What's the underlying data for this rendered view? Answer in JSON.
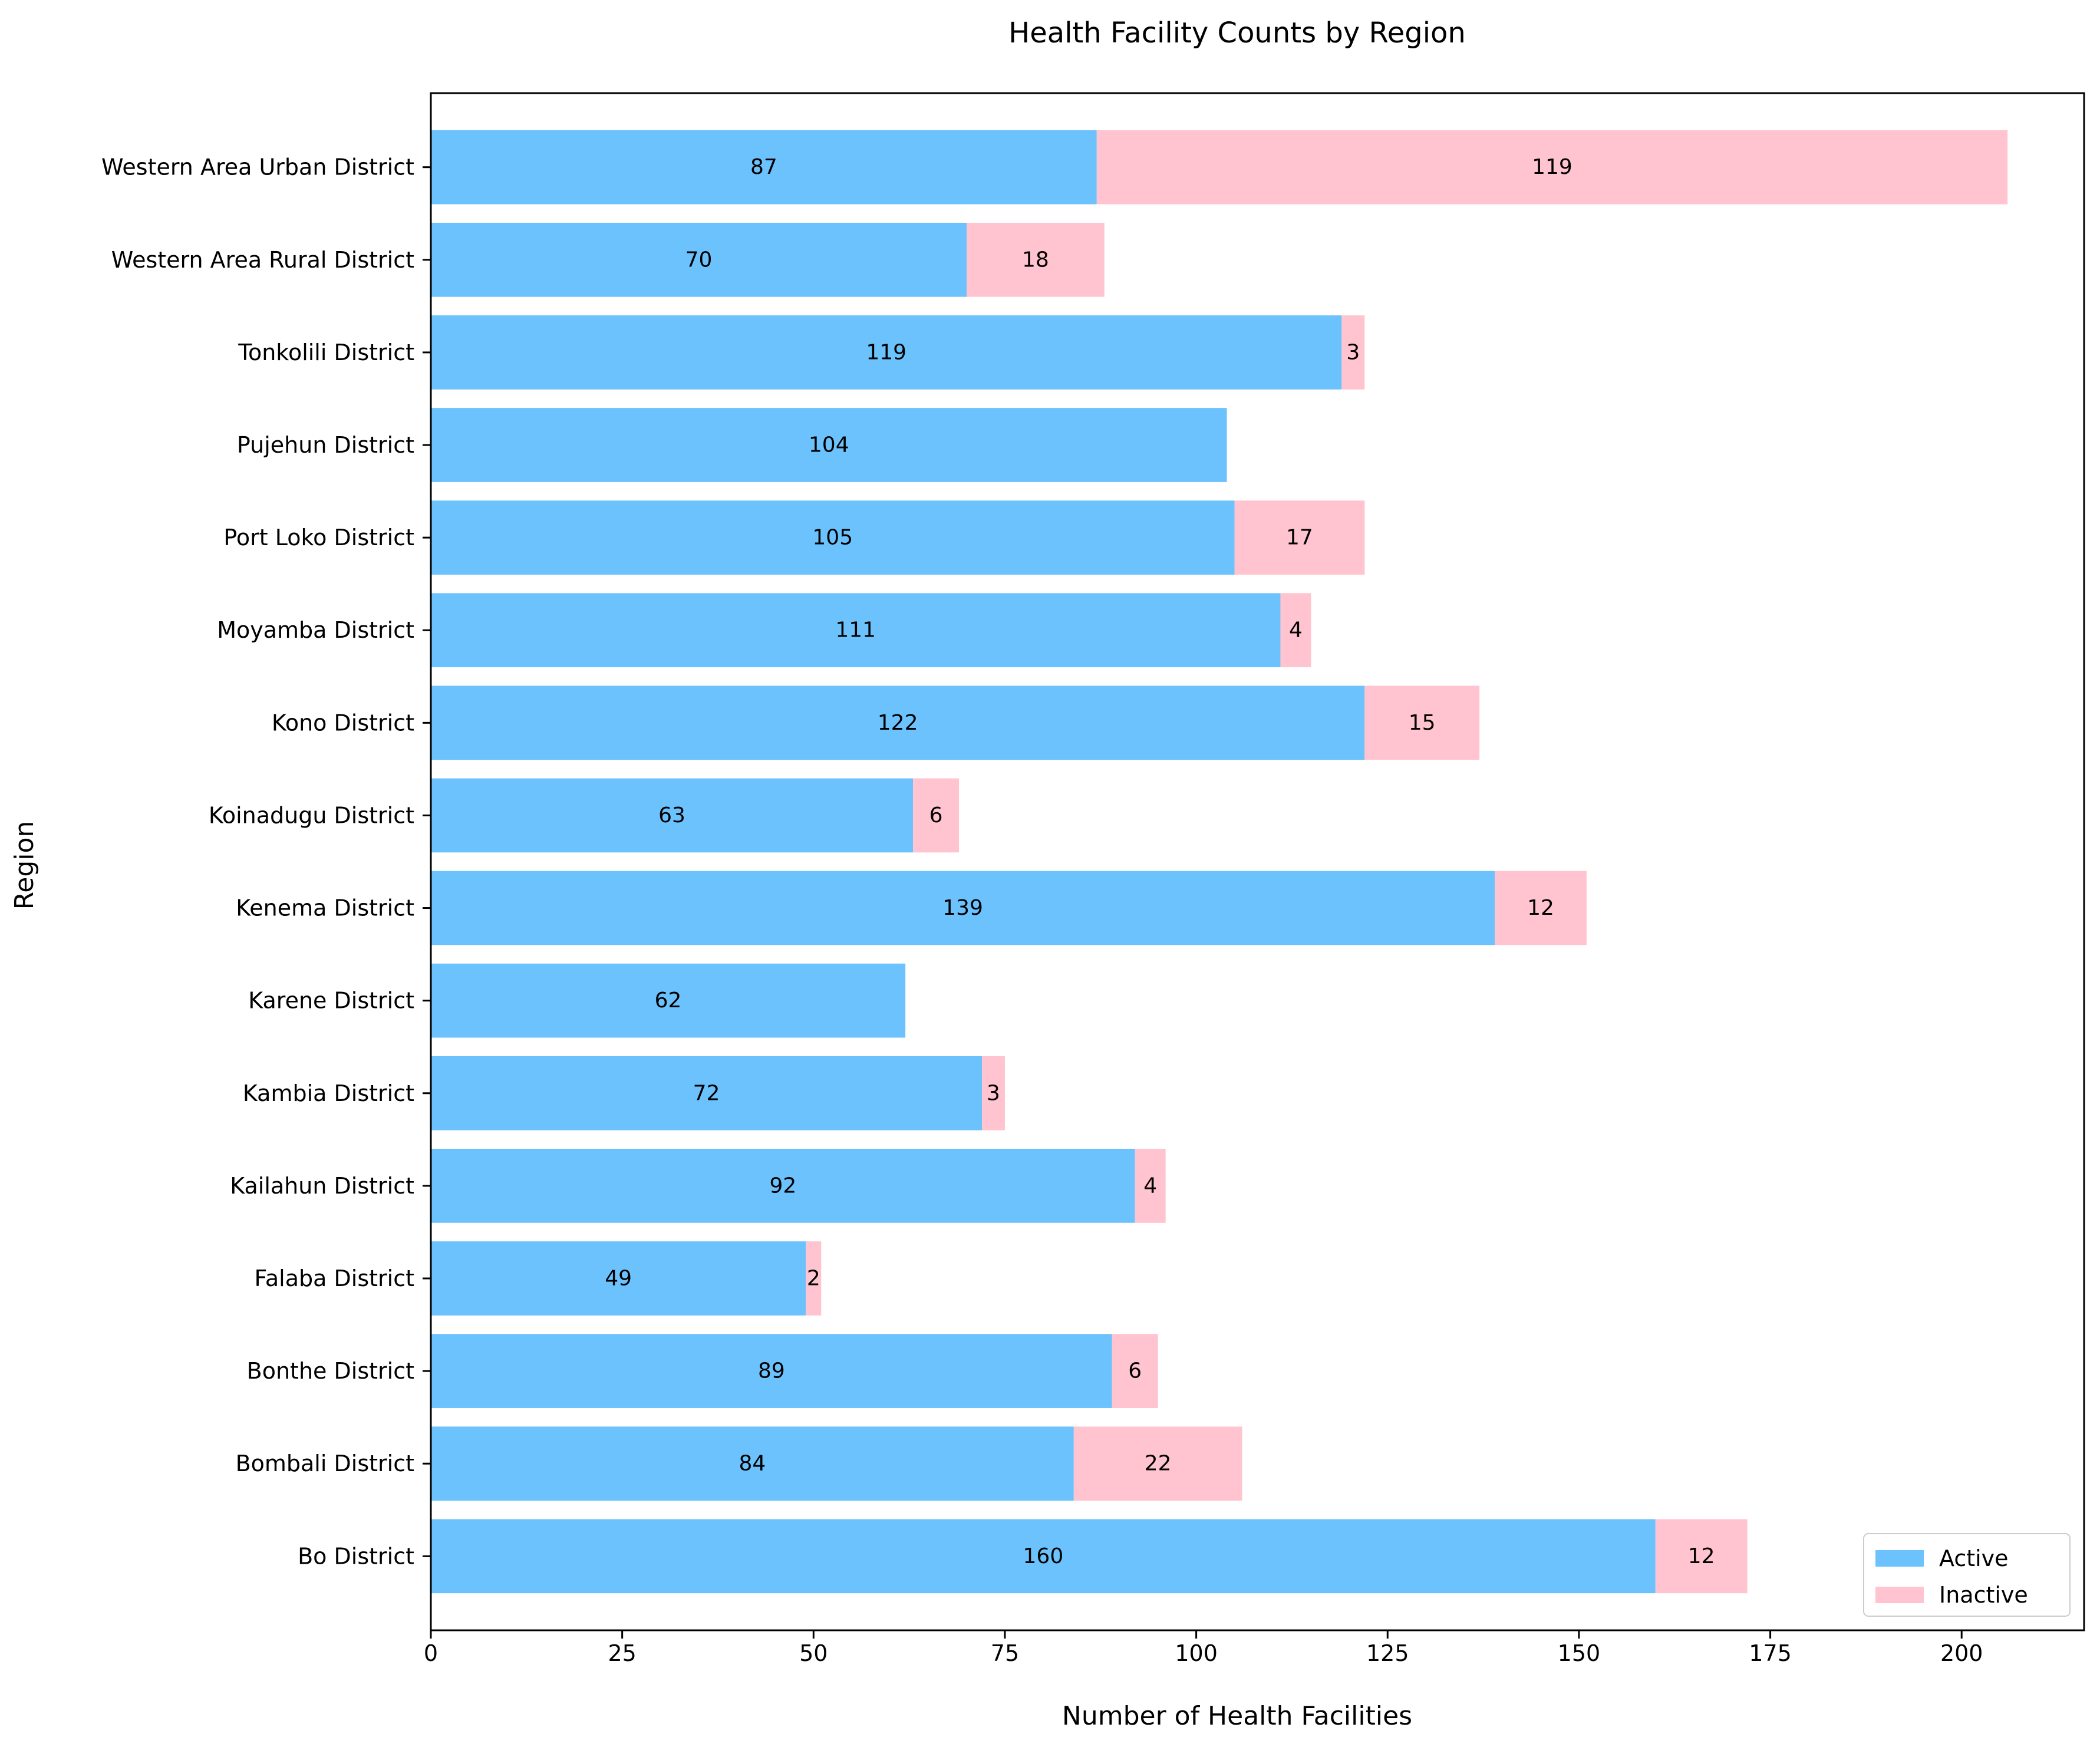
{
  "chart_data": {
    "type": "bar",
    "orientation": "horizontal",
    "stacked": true,
    "title": "Health Facility Counts by Region",
    "xlabel": "Number of Health Facilities",
    "ylabel": "Region",
    "xlim": [
      0,
      216
    ],
    "xticks": [
      0,
      25,
      50,
      75,
      100,
      125,
      150,
      175,
      200
    ],
    "grid": false,
    "legend_position": "lower-right",
    "categories": [
      "Bo District",
      "Bombali District",
      "Bonthe District",
      "Falaba District",
      "Kailahun District",
      "Kambia District",
      "Karene District",
      "Kenema District",
      "Koinadugu District",
      "Kono District",
      "Moyamba District",
      "Port Loko District",
      "Pujehun District",
      "Tonkolili District",
      "Western Area Rural District",
      "Western Area Urban District"
    ],
    "series": [
      {
        "name": "Active",
        "color": "#6cc2fd",
        "values": [
          160,
          84,
          89,
          49,
          92,
          72,
          62,
          139,
          63,
          122,
          111,
          105,
          104,
          119,
          70,
          87
        ]
      },
      {
        "name": "Inactive",
        "color": "#ffc4cf",
        "values": [
          12,
          22,
          6,
          2,
          4,
          3,
          0,
          12,
          6,
          15,
          4,
          17,
          0,
          3,
          18,
          119
        ]
      }
    ]
  }
}
